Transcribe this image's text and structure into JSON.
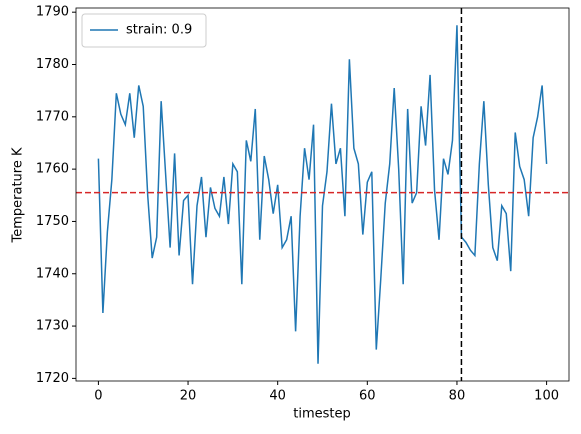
{
  "chart_data": {
    "type": "line",
    "xlabel": "timestep",
    "ylabel": "Temperature K",
    "x": [
      0,
      1,
      2,
      3,
      4,
      5,
      6,
      7,
      8,
      9,
      10,
      11,
      12,
      13,
      14,
      15,
      16,
      17,
      18,
      19,
      20,
      21,
      22,
      23,
      24,
      25,
      26,
      27,
      28,
      29,
      30,
      31,
      32,
      33,
      34,
      35,
      36,
      37,
      38,
      39,
      40,
      41,
      42,
      43,
      44,
      45,
      46,
      47,
      48,
      49,
      50,
      51,
      52,
      53,
      54,
      55,
      56,
      57,
      58,
      59,
      60,
      61,
      62,
      63,
      64,
      65,
      66,
      67,
      68,
      69,
      70,
      71,
      72,
      73,
      74,
      75,
      76,
      77,
      78,
      79,
      80,
      81,
      82,
      83,
      84,
      85,
      86,
      87,
      88,
      89,
      90,
      91,
      92,
      93,
      94,
      95,
      96,
      97,
      98,
      99,
      100
    ],
    "series": [
      {
        "name": "strain: 0.9",
        "color": "#1f77b4",
        "values": [
          1762,
          1732.5,
          1748,
          1758,
          1774.5,
          1770.5,
          1768.5,
          1774.5,
          1766,
          1776,
          1772,
          1755,
          1743,
          1747,
          1773,
          1759,
          1745,
          1763,
          1743.5,
          1754,
          1755,
          1738,
          1753,
          1758.5,
          1747,
          1756.5,
          1752.5,
          1751,
          1758.5,
          1749.5,
          1761,
          1759.5,
          1738,
          1765.5,
          1761.5,
          1771.5,
          1746.5,
          1762.5,
          1758,
          1751.5,
          1757,
          1745,
          1746.5,
          1751,
          1729,
          1751,
          1764,
          1758,
          1768.5,
          1722.8,
          1753,
          1759.5,
          1772.5,
          1761,
          1764,
          1751,
          1781,
          1764,
          1761,
          1747.5,
          1757.5,
          1759.5,
          1725.5,
          1739,
          1753.5,
          1761,
          1775.5,
          1760,
          1738,
          1771.5,
          1753.5,
          1755.5,
          1772,
          1764.5,
          1778,
          1756,
          1746.5,
          1762,
          1759,
          1765.5,
          1787.5,
          1747,
          1746,
          1744.5,
          1743.5,
          1761,
          1773,
          1757,
          1745,
          1742.5,
          1753,
          1751.5,
          1740.5,
          1767,
          1760.5,
          1758,
          1751,
          1766,
          1770,
          1776,
          1761
        ]
      }
    ],
    "hlines": [
      {
        "value": 1755.5,
        "color": "#d62728"
      }
    ],
    "vlines": [
      {
        "value": 81,
        "color": "#000000"
      }
    ],
    "xlim": [
      -5,
      105
    ],
    "ylim": [
      1719.5,
      1790.8
    ],
    "xticks": [
      0,
      20,
      40,
      60,
      80,
      100
    ],
    "yticks": [
      1720,
      1730,
      1740,
      1750,
      1760,
      1770,
      1780,
      1790
    ],
    "legend": "upper left"
  }
}
